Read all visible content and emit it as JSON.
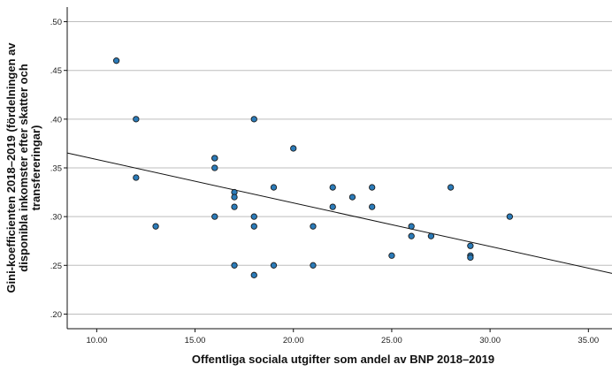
{
  "chart_data": {
    "type": "scatter",
    "xlabel": "Offentliga sociala utgifter som andel av BNP 2018–2019",
    "ylabel_lines": [
      "Gini-koefficienten 2018–2019 (fördelningen av",
      "disponibla inkomster efter skatter och",
      "transfereringar)"
    ],
    "xlim": [
      8.5,
      36.2
    ],
    "ylim": [
      0.185,
      0.515
    ],
    "x_ticks": [
      10,
      15,
      20,
      25,
      30,
      35
    ],
    "x_tick_labels": [
      "10.00",
      "15.00",
      "20.00",
      "25.00",
      "30.00",
      "35.00"
    ],
    "y_ticks": [
      0.2,
      0.25,
      0.3,
      0.35,
      0.4,
      0.45,
      0.5
    ],
    "y_tick_labels": [
      ".20",
      ".25",
      ".30",
      ".35",
      ".40",
      ".45",
      ".50"
    ],
    "grid": "horizontal",
    "point_color": "#2b7bb9",
    "points": [
      {
        "x": 11.0,
        "y": 0.46
      },
      {
        "x": 12.0,
        "y": 0.4
      },
      {
        "x": 12.0,
        "y": 0.34
      },
      {
        "x": 13.0,
        "y": 0.29
      },
      {
        "x": 16.0,
        "y": 0.36
      },
      {
        "x": 16.0,
        "y": 0.36
      },
      {
        "x": 16.0,
        "y": 0.35
      },
      {
        "x": 16.0,
        "y": 0.3
      },
      {
        "x": 17.0,
        "y": 0.325
      },
      {
        "x": 17.0,
        "y": 0.32
      },
      {
        "x": 17.0,
        "y": 0.31
      },
      {
        "x": 17.0,
        "y": 0.25
      },
      {
        "x": 18.0,
        "y": 0.4
      },
      {
        "x": 18.0,
        "y": 0.3
      },
      {
        "x": 18.0,
        "y": 0.29
      },
      {
        "x": 18.0,
        "y": 0.24
      },
      {
        "x": 19.0,
        "y": 0.33
      },
      {
        "x": 19.0,
        "y": 0.25
      },
      {
        "x": 20.0,
        "y": 0.37
      },
      {
        "x": 21.0,
        "y": 0.29
      },
      {
        "x": 21.0,
        "y": 0.25
      },
      {
        "x": 22.0,
        "y": 0.33
      },
      {
        "x": 22.0,
        "y": 0.31
      },
      {
        "x": 23.0,
        "y": 0.32
      },
      {
        "x": 24.0,
        "y": 0.33
      },
      {
        "x": 24.0,
        "y": 0.31
      },
      {
        "x": 25.0,
        "y": 0.26
      },
      {
        "x": 26.0,
        "y": 0.29
      },
      {
        "x": 26.0,
        "y": 0.28
      },
      {
        "x": 27.0,
        "y": 0.28
      },
      {
        "x": 28.0,
        "y": 0.33
      },
      {
        "x": 29.0,
        "y": 0.27
      },
      {
        "x": 29.0,
        "y": 0.26
      },
      {
        "x": 29.0,
        "y": 0.258
      },
      {
        "x": 31.0,
        "y": 0.3
      }
    ],
    "fit_line": {
      "x": [
        8.5,
        36.2
      ],
      "y": [
        0.3653,
        0.2418
      ]
    }
  }
}
